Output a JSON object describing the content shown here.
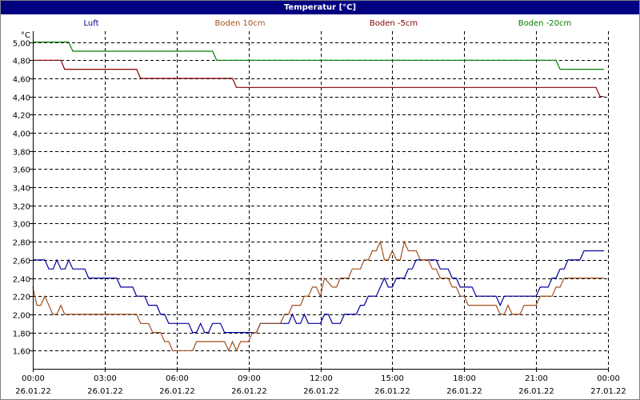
{
  "window": {
    "title": "Temperatur [°C]"
  },
  "chart_data": {
    "type": "line",
    "title": "Temperatur [°C]",
    "ylabel": "°C",
    "xlabel": "",
    "ylim": [
      1.4,
      5.12
    ],
    "yticks": [
      "1,60",
      "1,80",
      "2,00",
      "2,20",
      "2,40",
      "2,60",
      "2,80",
      "3,00",
      "3,20",
      "3,40",
      "3,60",
      "3,80",
      "4,00",
      "4,20",
      "4,40",
      "4,60",
      "4,80",
      "5,00"
    ],
    "ytick_values": [
      1.6,
      1.8,
      2.0,
      2.2,
      2.4,
      2.6,
      2.8,
      3.0,
      3.2,
      3.4,
      3.6,
      3.8,
      4.0,
      4.2,
      4.4,
      4.6,
      4.8,
      5.0
    ],
    "xlim": [
      0,
      24
    ],
    "xticks": [
      {
        "time": "00:00",
        "date": "26.01.22",
        "h": 0
      },
      {
        "time": "03:00",
        "date": "26.01.22",
        "h": 3
      },
      {
        "time": "06:00",
        "date": "26.01.22",
        "h": 6
      },
      {
        "time": "09:00",
        "date": "26.01.22",
        "h": 9
      },
      {
        "time": "12:00",
        "date": "26.01.22",
        "h": 12
      },
      {
        "time": "15:00",
        "date": "26.01.22",
        "h": 15
      },
      {
        "time": "18:00",
        "date": "26.01.22",
        "h": 18
      },
      {
        "time": "21:00",
        "date": "26.01.22",
        "h": 21
      },
      {
        "time": "00:00",
        "date": "27.01.22",
        "h": 24
      }
    ],
    "grid": true,
    "legend": "top",
    "series": [
      {
        "name": "Luft",
        "color": "#0000a0",
        "points": [
          [
            0,
            2.6
          ],
          [
            0.5,
            2.6
          ],
          [
            0.67,
            2.5
          ],
          [
            0.85,
            2.5
          ],
          [
            1.0,
            2.6
          ],
          [
            1.17,
            2.5
          ],
          [
            1.35,
            2.5
          ],
          [
            1.5,
            2.6
          ],
          [
            1.67,
            2.5
          ],
          [
            2.17,
            2.5
          ],
          [
            2.33,
            2.4
          ],
          [
            3.5,
            2.4
          ],
          [
            3.67,
            2.3
          ],
          [
            4.17,
            2.3
          ],
          [
            4.33,
            2.2
          ],
          [
            4.67,
            2.2
          ],
          [
            4.83,
            2.1
          ],
          [
            5.17,
            2.1
          ],
          [
            5.33,
            2.0
          ],
          [
            5.5,
            2.0
          ],
          [
            5.67,
            1.9
          ],
          [
            6.5,
            1.9
          ],
          [
            6.67,
            1.8
          ],
          [
            6.83,
            1.8
          ],
          [
            7.0,
            1.9
          ],
          [
            7.17,
            1.8
          ],
          [
            7.33,
            1.8
          ],
          [
            7.5,
            1.9
          ],
          [
            7.83,
            1.9
          ],
          [
            8.0,
            1.8
          ],
          [
            9.33,
            1.8
          ],
          [
            9.5,
            1.9
          ],
          [
            10.67,
            1.9
          ],
          [
            10.83,
            2.0
          ],
          [
            11.0,
            1.9
          ],
          [
            11.17,
            1.9
          ],
          [
            11.33,
            2.0
          ],
          [
            11.5,
            1.9
          ],
          [
            12.0,
            1.9
          ],
          [
            12.17,
            2.0
          ],
          [
            12.33,
            2.0
          ],
          [
            12.5,
            1.9
          ],
          [
            12.83,
            1.9
          ],
          [
            13.0,
            2.0
          ],
          [
            13.5,
            2.0
          ],
          [
            13.67,
            2.1
          ],
          [
            13.83,
            2.1
          ],
          [
            14.0,
            2.2
          ],
          [
            14.33,
            2.2
          ],
          [
            14.5,
            2.3
          ],
          [
            14.67,
            2.4
          ],
          [
            14.83,
            2.3
          ],
          [
            15.0,
            2.3
          ],
          [
            15.17,
            2.4
          ],
          [
            15.5,
            2.4
          ],
          [
            15.67,
            2.5
          ],
          [
            15.83,
            2.5
          ],
          [
            16.0,
            2.6
          ],
          [
            16.83,
            2.6
          ],
          [
            17.0,
            2.5
          ],
          [
            17.33,
            2.5
          ],
          [
            17.5,
            2.4
          ],
          [
            17.67,
            2.4
          ],
          [
            17.83,
            2.3
          ],
          [
            18.33,
            2.3
          ],
          [
            18.5,
            2.2
          ],
          [
            19.33,
            2.2
          ],
          [
            19.5,
            2.1
          ],
          [
            19.67,
            2.2
          ],
          [
            21.0,
            2.2
          ],
          [
            21.17,
            2.3
          ],
          [
            21.5,
            2.3
          ],
          [
            21.67,
            2.4
          ],
          [
            21.83,
            2.4
          ],
          [
            22.0,
            2.5
          ],
          [
            22.17,
            2.5
          ],
          [
            22.33,
            2.6
          ],
          [
            22.83,
            2.6
          ],
          [
            23.0,
            2.7
          ],
          [
            23.83,
            2.7
          ]
        ]
      },
      {
        "name": "Boden 10cm",
        "color": "#a0501e",
        "points": [
          [
            0,
            2.3
          ],
          [
            0.17,
            2.1
          ],
          [
            0.33,
            2.1
          ],
          [
            0.5,
            2.2
          ],
          [
            0.67,
            2.1
          ],
          [
            0.83,
            2.0
          ],
          [
            1.0,
            2.0
          ],
          [
            1.17,
            2.1
          ],
          [
            1.33,
            2.0
          ],
          [
            4.33,
            2.0
          ],
          [
            4.5,
            1.9
          ],
          [
            4.83,
            1.9
          ],
          [
            5.0,
            1.8
          ],
          [
            5.33,
            1.8
          ],
          [
            5.5,
            1.7
          ],
          [
            5.67,
            1.7
          ],
          [
            5.83,
            1.6
          ],
          [
            6.67,
            1.6
          ],
          [
            6.83,
            1.7
          ],
          [
            8.0,
            1.7
          ],
          [
            8.17,
            1.6
          ],
          [
            8.33,
            1.7
          ],
          [
            8.5,
            1.6
          ],
          [
            8.67,
            1.7
          ],
          [
            9.0,
            1.7
          ],
          [
            9.17,
            1.8
          ],
          [
            9.33,
            1.8
          ],
          [
            9.5,
            1.9
          ],
          [
            10.33,
            1.9
          ],
          [
            10.5,
            2.0
          ],
          [
            10.67,
            2.0
          ],
          [
            10.83,
            2.1
          ],
          [
            11.17,
            2.1
          ],
          [
            11.33,
            2.2
          ],
          [
            11.5,
            2.2
          ],
          [
            11.67,
            2.3
          ],
          [
            11.83,
            2.3
          ],
          [
            12.0,
            2.2
          ],
          [
            12.17,
            2.4
          ],
          [
            12.5,
            2.3
          ],
          [
            12.67,
            2.3
          ],
          [
            12.83,
            2.4
          ],
          [
            13.17,
            2.4
          ],
          [
            13.33,
            2.5
          ],
          [
            13.67,
            2.5
          ],
          [
            13.83,
            2.6
          ],
          [
            14.0,
            2.6
          ],
          [
            14.17,
            2.7
          ],
          [
            14.33,
            2.7
          ],
          [
            14.5,
            2.8
          ],
          [
            14.67,
            2.6
          ],
          [
            14.83,
            2.6
          ],
          [
            15.0,
            2.7
          ],
          [
            15.17,
            2.6
          ],
          [
            15.33,
            2.6
          ],
          [
            15.5,
            2.8
          ],
          [
            15.67,
            2.7
          ],
          [
            16.0,
            2.7
          ],
          [
            16.17,
            2.6
          ],
          [
            16.5,
            2.6
          ],
          [
            16.67,
            2.5
          ],
          [
            16.83,
            2.5
          ],
          [
            17.0,
            2.4
          ],
          [
            17.33,
            2.4
          ],
          [
            17.5,
            2.3
          ],
          [
            17.67,
            2.3
          ],
          [
            17.83,
            2.2
          ],
          [
            18.0,
            2.2
          ],
          [
            18.17,
            2.1
          ],
          [
            19.33,
            2.1
          ],
          [
            19.5,
            2.0
          ],
          [
            19.67,
            2.0
          ],
          [
            19.83,
            2.1
          ],
          [
            20.0,
            2.0
          ],
          [
            20.33,
            2.0
          ],
          [
            20.5,
            2.1
          ],
          [
            21.0,
            2.1
          ],
          [
            21.17,
            2.2
          ],
          [
            21.67,
            2.2
          ],
          [
            21.83,
            2.3
          ],
          [
            22.0,
            2.3
          ],
          [
            22.17,
            2.4
          ],
          [
            23.83,
            2.4
          ]
        ]
      },
      {
        "name": "Boden -5cm",
        "color": "#800000",
        "points": [
          [
            0,
            4.8
          ],
          [
            1.17,
            4.8
          ],
          [
            1.33,
            4.7
          ],
          [
            4.33,
            4.7
          ],
          [
            4.5,
            4.6
          ],
          [
            8.33,
            4.6
          ],
          [
            8.5,
            4.5
          ],
          [
            23.5,
            4.5
          ],
          [
            23.67,
            4.4
          ],
          [
            23.83,
            4.4
          ]
        ]
      },
      {
        "name": "Boden -20cm",
        "color": "#008000",
        "points": [
          [
            0,
            5.0
          ],
          [
            1.5,
            5.0
          ],
          [
            1.67,
            4.9
          ],
          [
            7.5,
            4.9
          ],
          [
            7.67,
            4.8
          ],
          [
            21.83,
            4.8
          ],
          [
            22.0,
            4.7
          ],
          [
            23.83,
            4.7
          ]
        ]
      }
    ]
  }
}
